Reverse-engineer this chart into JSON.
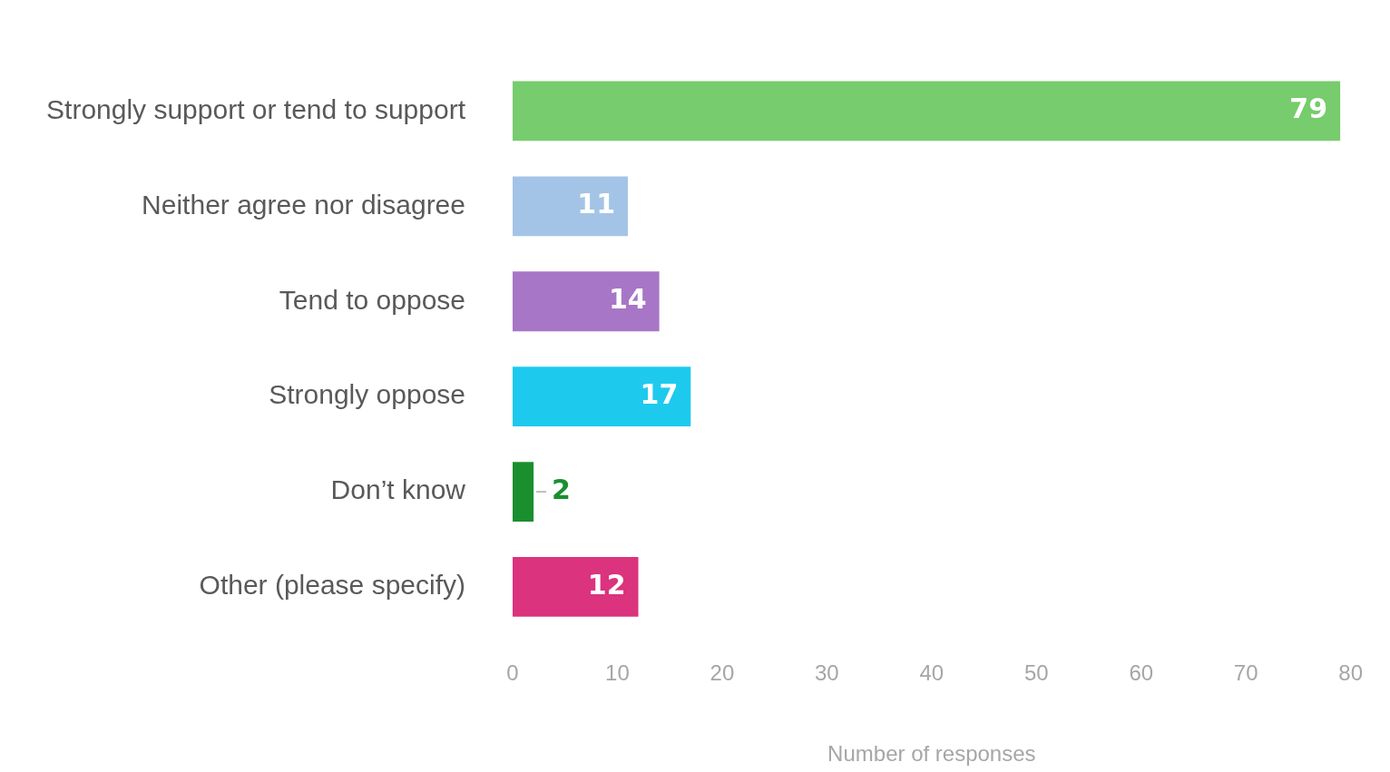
{
  "chart_data": {
    "type": "bar",
    "orientation": "horizontal",
    "xlabel": "Number of responses",
    "categories": [
      "Strongly support or tend to support",
      "Neither agree nor disagree",
      "Tend to oppose",
      "Strongly oppose",
      "Don’t know",
      "Other (please specify)"
    ],
    "values": [
      79,
      11,
      14,
      17,
      2,
      12
    ],
    "colors": [
      "#77cc6d",
      "#a3c4e6",
      "#a876c6",
      "#1dcaee",
      "#1a8f2e",
      "#db337e"
    ],
    "xlim": [
      0,
      80
    ],
    "xticks": [
      0,
      10,
      20,
      30,
      40,
      50,
      60,
      70,
      80
    ],
    "data_labels": true,
    "grid": false,
    "legend": false
  }
}
